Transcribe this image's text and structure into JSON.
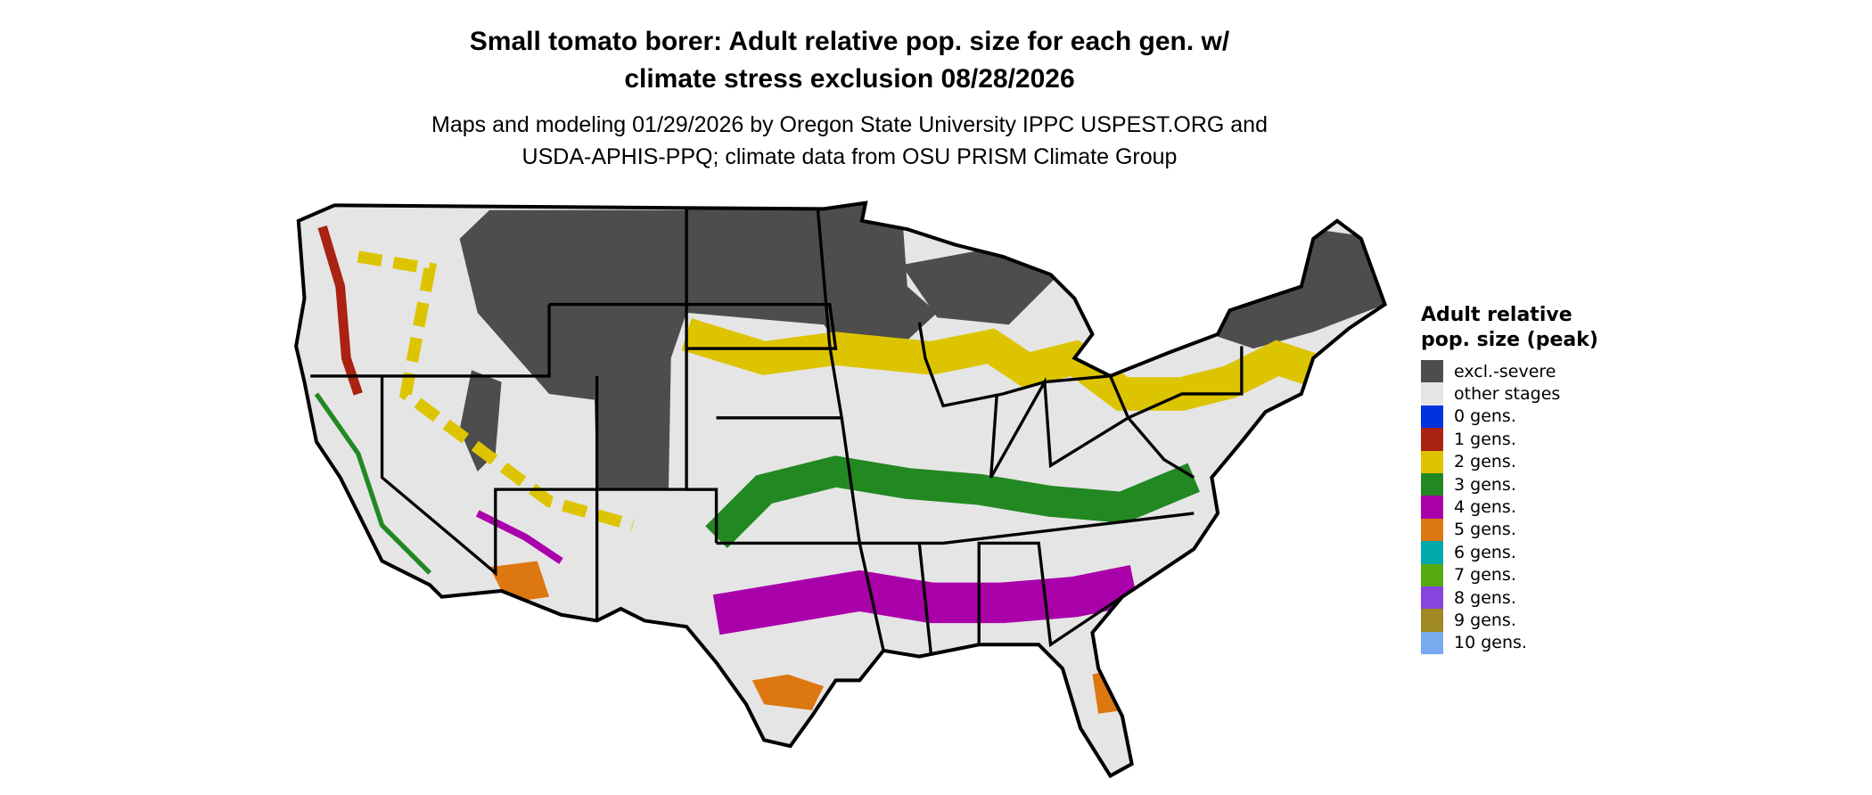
{
  "title_line1": "Small tomato borer: Adult relative pop. size for each gen. w/",
  "title_line2": "climate stress exclusion 08/28/2026",
  "subtitle_line1": "Maps and modeling 01/29/2026 by Oregon State University IPPC USPEST.ORG and",
  "subtitle_line2": "USDA-APHIS-PPQ; climate data from OSU PRISM Climate Group",
  "legend": {
    "title": "Adult relative pop. size (peak)",
    "items": [
      {
        "label": "excl.-severe",
        "color": "#4d4d4d"
      },
      {
        "label": "other stages",
        "color": "#e5e5e5"
      },
      {
        "label": "0 gens.",
        "color": "#0033dd"
      },
      {
        "label": "1 gens.",
        "color": "#aa2211"
      },
      {
        "label": "2 gens.",
        "color": "#ddc400"
      },
      {
        "label": "3 gens.",
        "color": "#228822"
      },
      {
        "label": "4 gens.",
        "color": "#aa00aa"
      },
      {
        "label": "5 gens.",
        "color": "#dd7711"
      },
      {
        "label": "6 gens.",
        "color": "#00aaaa"
      },
      {
        "label": "7 gens.",
        "color": "#55aa11"
      },
      {
        "label": "8 gens.",
        "color": "#8844dd"
      },
      {
        "label": "9 gens.",
        "color": "#a08822"
      },
      {
        "label": "10 gens.",
        "color": "#77aaee"
      }
    ]
  }
}
